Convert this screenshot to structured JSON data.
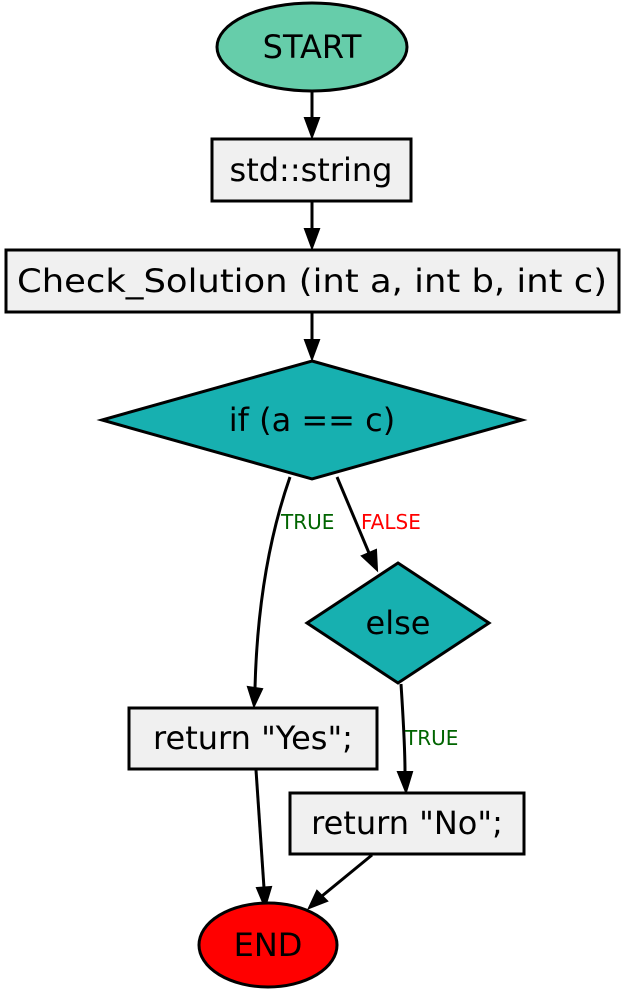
{
  "colors": {
    "start_fill": "#66cdaa",
    "end_fill": "#ff0000",
    "process_fill": "#f0f0f0",
    "decision_fill": "#17b0b0",
    "true_label": "#006400",
    "false_label": "#ff0000"
  },
  "nodes": {
    "start": {
      "label": "START",
      "shape": "ellipse"
    },
    "declaration": {
      "label": "std::string",
      "shape": "rectangle"
    },
    "function": {
      "label": "Check_Solution (int a, int b, int c)",
      "shape": "rectangle"
    },
    "if_condition": {
      "label": "if (a == c)",
      "shape": "diamond"
    },
    "else_branch": {
      "label": "else",
      "shape": "diamond"
    },
    "return_yes": {
      "label": "return \"Yes\";",
      "shape": "rectangle"
    },
    "return_no": {
      "label": "return \"No\";",
      "shape": "rectangle"
    },
    "end": {
      "label": "END",
      "shape": "ellipse"
    }
  },
  "edges": {
    "if_true": {
      "label": "TRUE"
    },
    "if_false": {
      "label": "FALSE"
    },
    "else_true": {
      "label": "TRUE"
    }
  }
}
